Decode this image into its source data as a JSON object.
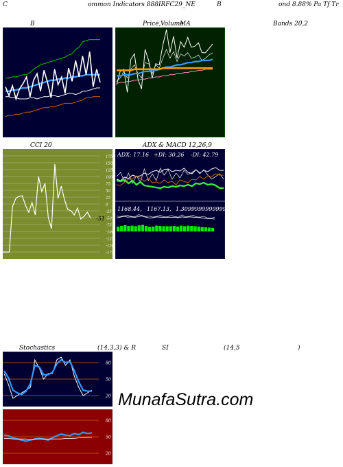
{
  "header": {
    "c": "C",
    "common": "ommon  Indicators 888IRFC29_NE",
    "b": "B",
    "bond": "ond 8.88% Pa  Tf  Tr"
  },
  "titles": {
    "bb_left": "B",
    "price_left": "Price,",
    "price_overlap": "Volume",
    "price_right": "MA",
    "bands": "Bands 20,2",
    "cci": "CCI 20",
    "adx": "ADX  & MACD 12,26,9",
    "stoch": "Stochastics",
    "stoch_params": "(14,3,3) & R",
    "si": "SI",
    "rsi_params": "(14,5",
    "rsi_close": ")"
  },
  "adx_readout": {
    "adx": "ADX: 17.16",
    "pdi": "+DI: 30.26",
    "mdi": "-DI: 42.79"
  },
  "macd_readout": {
    "a": "1168.44,",
    "b": "1167.13,",
    "c": "1.3099999999999"
  },
  "cci_last": "-51",
  "watermark": "MunafaSutra.com",
  "colors": {
    "navy": "#000033",
    "darkgreen": "#002200",
    "olive": "#7a8c2e",
    "rsired": "#8b0000",
    "blue": "#3399ff",
    "orange": "#cc6600",
    "green": "#00aa00",
    "limegreen": "#33ee33"
  },
  "chart_data": [
    {
      "type": "line",
      "name": "bollinger-bands",
      "series": [
        {
          "values": [
            54,
            54,
            55,
            55,
            56,
            57,
            57,
            59,
            62,
            64,
            66,
            67,
            68,
            69,
            70,
            71,
            72,
            73,
            75,
            76,
            80,
            82,
            87,
            88,
            89,
            89,
            89,
            89
          ]
        },
        {
          "values": [
            42,
            42,
            43,
            43,
            44,
            45,
            45,
            46,
            47,
            48,
            49,
            50,
            51,
            52,
            52,
            53,
            53,
            54,
            54,
            55,
            55,
            56,
            56,
            57,
            57,
            57,
            57,
            57
          ]
        },
        {
          "values": [
            37,
            37,
            36,
            36,
            35,
            35,
            35,
            36,
            36,
            35,
            36,
            37,
            37,
            38,
            38,
            37,
            38,
            39,
            40,
            40,
            39,
            40,
            42,
            42,
            43,
            44,
            45,
            45
          ]
        },
        {
          "values": [
            19,
            20,
            20,
            21,
            21,
            22,
            23,
            23,
            24,
            25,
            26,
            27,
            27,
            28,
            28,
            29,
            30,
            31,
            31,
            31,
            32,
            33,
            34,
            36,
            36,
            37,
            37,
            37
          ]
        },
        {
          "values": [
            46,
            38,
            47,
            35,
            44,
            49,
            55,
            37,
            52,
            58,
            42,
            61,
            50,
            36,
            62,
            48,
            55,
            40,
            63,
            51,
            70,
            55,
            74,
            57,
            78,
            46,
            62,
            50
          ]
        }
      ],
      "ylim": [
        0,
        100
      ]
    },
    {
      "type": "line",
      "name": "price-volume-ma",
      "series": [
        {
          "values": [
            48,
            60,
            62,
            41,
            71,
            76,
            53,
            44,
            80,
            70,
            54,
            67,
            66,
            84,
            98,
            77,
            92,
            72,
            87,
            82,
            91,
            82,
            83,
            86,
            77,
            77,
            81,
            85
          ]
        },
        {
          "values": [
            51,
            54,
            60,
            54,
            62,
            66,
            58,
            54,
            68,
            67,
            58,
            66,
            63,
            72,
            80,
            72,
            78,
            69,
            76,
            74,
            77,
            72,
            73,
            75,
            70,
            72,
            75,
            77
          ]
        },
        {
          "values": [
            56,
            56,
            57,
            57,
            57,
            58,
            58,
            59,
            60,
            60,
            61,
            61,
            62,
            63,
            64,
            64,
            65,
            66,
            66,
            67,
            68,
            68,
            69,
            69,
            70,
            70,
            70,
            71
          ]
        },
        {
          "values": [
            61,
            61,
            61,
            61,
            61,
            62,
            62,
            62,
            62,
            62,
            62,
            62,
            62,
            63,
            63,
            63,
            63,
            63,
            63,
            63,
            63,
            63,
            63,
            63,
            63,
            63,
            63,
            63
          ]
        },
        {
          "values": [
            49,
            50,
            50,
            51,
            51,
            52,
            52,
            53,
            53,
            54,
            54,
            55,
            55,
            56,
            56,
            57,
            57,
            58,
            58,
            59,
            59,
            60,
            60,
            61,
            61,
            62,
            62,
            62
          ]
        }
      ],
      "ylim": [
        0,
        100
      ]
    },
    {
      "type": "line",
      "name": "cci",
      "x": [
        0,
        1,
        2,
        3,
        4,
        5,
        6,
        7,
        8,
        9,
        10,
        11,
        12,
        13,
        14,
        15,
        16,
        17,
        18,
        19,
        20,
        21,
        22,
        23,
        24,
        25,
        26,
        27
      ],
      "values": [
        -175,
        -175,
        -175,
        -10,
        20,
        28,
        30,
        -5,
        -30,
        5,
        -40,
        100,
        45,
        75,
        -50,
        -90,
        145,
        20,
        65,
        15,
        -20,
        -25,
        -40,
        -15,
        -55,
        -45,
        -30,
        -51
      ],
      "ylabel": "",
      "ylim": [
        -200,
        200
      ],
      "ticks": [
        "175",
        "150",
        "125",
        "100",
        "75",
        "50",
        "25",
        "0",
        "-25",
        "-50",
        "-75",
        "-100",
        "-125",
        "-150",
        "-175"
      ]
    },
    {
      "type": "line",
      "name": "adx-di",
      "series": [
        {
          "values": [
            30,
            28,
            33,
            31,
            36,
            34,
            35,
            39,
            37,
            41,
            43,
            40,
            44,
            45,
            41,
            43,
            42,
            46,
            40,
            38,
            44,
            39,
            43,
            41,
            45,
            47,
            43,
            42.79
          ]
        },
        {
          "values": [
            34,
            40,
            26,
            39,
            24,
            35,
            26,
            45,
            28,
            38,
            28,
            46,
            36,
            44,
            30,
            39,
            32,
            43,
            37,
            40,
            44,
            38,
            44,
            36,
            30,
            34,
            38,
            30.26
          ]
        },
        {
          "values": [
            28,
            27,
            29,
            24,
            28,
            22,
            26,
            21,
            20,
            19,
            18,
            17,
            19,
            18,
            20,
            19,
            21,
            20,
            22,
            20,
            24,
            23,
            25,
            22,
            23,
            21,
            17,
            17.16
          ]
        },
        {
          "values": [
            22,
            21,
            26,
            30,
            31,
            35,
            31,
            27,
            31,
            25,
            26,
            24,
            29,
            25,
            27,
            22,
            29,
            27,
            25,
            30,
            29,
            34,
            30,
            35,
            34,
            38,
            36,
            36
          ]
        }
      ],
      "ylim": [
        0,
        60
      ]
    },
    {
      "type": "bar",
      "name": "macd",
      "values": [
        1.7,
        2.0,
        2.3,
        2.0,
        2.1,
        1.9,
        2.2,
        2.4,
        2.0,
        1.7,
        1.8,
        2.1,
        2.0,
        1.9,
        1.9,
        1.9,
        2.0,
        1.8,
        2.1,
        1.9,
        2.1,
        2.0,
        1.9,
        1.8,
        1.6,
        1.5,
        1.4,
        1.31
      ],
      "ylim": [
        0,
        10
      ]
    },
    {
      "type": "line",
      "name": "stochastics",
      "series": [
        {
          "values": [
            60,
            40,
            15,
            20,
            25,
            30,
            35,
            85,
            70,
            50,
            60,
            60,
            85,
            90,
            75,
            85,
            55,
            35,
            20,
            25,
            30
          ]
        },
        {
          "values": [
            65,
            52,
            30,
            25,
            22,
            28,
            42,
            75,
            72,
            58,
            58,
            62,
            78,
            85,
            80,
            82,
            65,
            45,
            30,
            28,
            28
          ]
        }
      ],
      "ylim": [
        0,
        100
      ],
      "ticks": [
        "80",
        "50",
        "20"
      ]
    },
    {
      "type": "line",
      "name": "rsi",
      "series": [
        {
          "values": [
            53,
            52,
            48,
            46,
            44,
            42,
            44,
            46,
            47,
            46,
            44,
            48,
            52,
            55,
            53,
            52,
            56,
            54,
            58,
            56,
            57
          ]
        },
        {
          "values": [
            47,
            47,
            46,
            46,
            46,
            46,
            45,
            46,
            46,
            46,
            46,
            46,
            46,
            46,
            47,
            47,
            47,
            48,
            48,
            49,
            49
          ]
        }
      ],
      "ylim": [
        0,
        100
      ],
      "ticks": [
        "80",
        "50",
        "20"
      ]
    }
  ]
}
